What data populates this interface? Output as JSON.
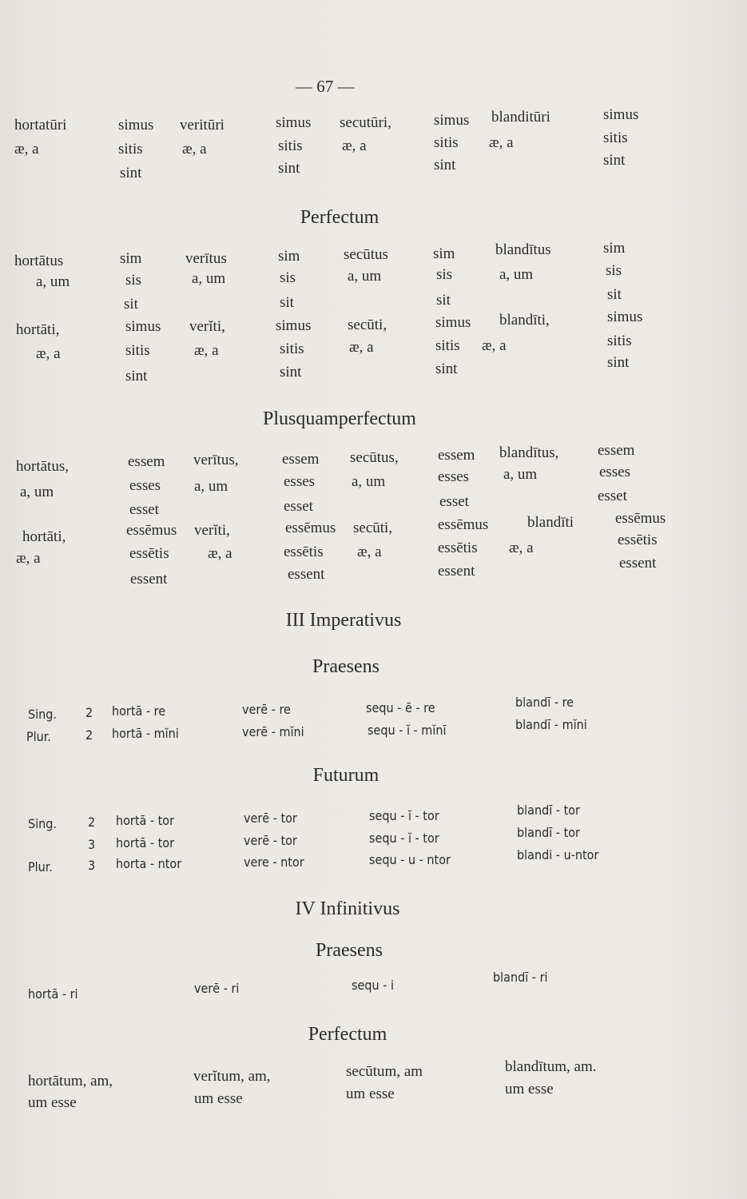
{
  "page_number": "— 67 —",
  "headings": {
    "perfectum": "Perfectum",
    "plusquamperfectum": "Plusquamperfectum",
    "imperativus": "III Imperativus",
    "imp_praesens": "Praesens",
    "imp_futurum": "Futurum",
    "infinitivus": "IV Infinitivus",
    "inf_praesens": "Praesens",
    "inf_perfectum": "Perfectum"
  },
  "futurum_participle": [
    [
      "hortatūri",
      "simus",
      "veritūri",
      "simus",
      "secutūri,",
      "simus",
      "blanditūri",
      "simus"
    ],
    [
      "æ, a",
      "sitis",
      "æ, a",
      "sitis",
      "æ, a",
      "sitis",
      "æ, a",
      "sitis"
    ],
    [
      "sint",
      "sint",
      "sint",
      "sint"
    ]
  ],
  "perfectum": [
    [
      "hortātus",
      "sim",
      "verītus",
      "sim",
      "secūtus",
      "sim",
      "blandītus",
      "sim"
    ],
    [
      "a, um",
      "sis",
      "a, um",
      "sis",
      "a, um",
      "sis",
      "a, um",
      "sis"
    ],
    [
      "sit",
      "sit",
      "sit",
      "sit"
    ],
    [
      "hortāti,",
      "simus",
      "verĭti,",
      "simus",
      "secūti,",
      "simus",
      "blandīti,",
      "simus"
    ],
    [
      "æ, a",
      "sitis",
      "æ, a",
      "sitis",
      "æ, a",
      "sitis",
      "æ, a",
      "sitis"
    ],
    [
      "sint",
      "sint",
      "sint",
      "sint"
    ]
  ],
  "plusquamperfectum": [
    [
      "hortātus,",
      "essem",
      "verītus,",
      "essem",
      "secūtus,",
      "essem",
      "blandītus,",
      "essem"
    ],
    [
      "a, um",
      "esses",
      "a, um",
      "esses",
      "a, um",
      "esses",
      "a, um",
      "esses"
    ],
    [
      "esset",
      "esset",
      "esset",
      "esset"
    ],
    [
      "hortāti,",
      "essēmus",
      "verĭti,",
      "essēmus",
      "secūti,",
      "essēmus",
      "blandīti",
      "essēmus"
    ],
    [
      "æ, a",
      "essētis",
      "æ, a",
      "essētis",
      "æ, a",
      "essētis",
      "æ, a",
      "essētis"
    ],
    [
      "essent",
      "essent",
      "essent",
      "essent"
    ]
  ],
  "imperativus_praesens": [
    [
      "Sing.",
      "2",
      "hortā - re",
      "verē - re",
      "sequ - ē - re",
      "blandī - re"
    ],
    [
      "Plur.",
      "2",
      "hortā - mĭni",
      "verē - mĭni",
      "sequ - ĭ - mĭnī",
      "blandī - mĭni"
    ]
  ],
  "imperativus_futurum": [
    [
      "Sing.",
      "2",
      "hortā - tor",
      "verē - tor",
      "sequ - ĭ - tor",
      "blandī - tor"
    ],
    [
      "3",
      "hortā - tor",
      "verē - tor",
      "sequ - ĭ - tor",
      "blandī - tor"
    ],
    [
      "Plur.",
      "3",
      "horta - ntor",
      "vere - ntor",
      "sequ - u - ntor",
      "blandi - u-ntor"
    ]
  ],
  "infinitivus_praesens": [
    [
      "hortā - ri",
      "verē - ri",
      "sequ - i",
      "blandī - ri"
    ]
  ],
  "infinitivus_perfectum": [
    [
      "hortātum, am,",
      "verĭtum, am,",
      "secūtum, am",
      "blandītum, am."
    ],
    [
      "um esse",
      "um esse",
      "um esse",
      "um esse"
    ]
  ]
}
